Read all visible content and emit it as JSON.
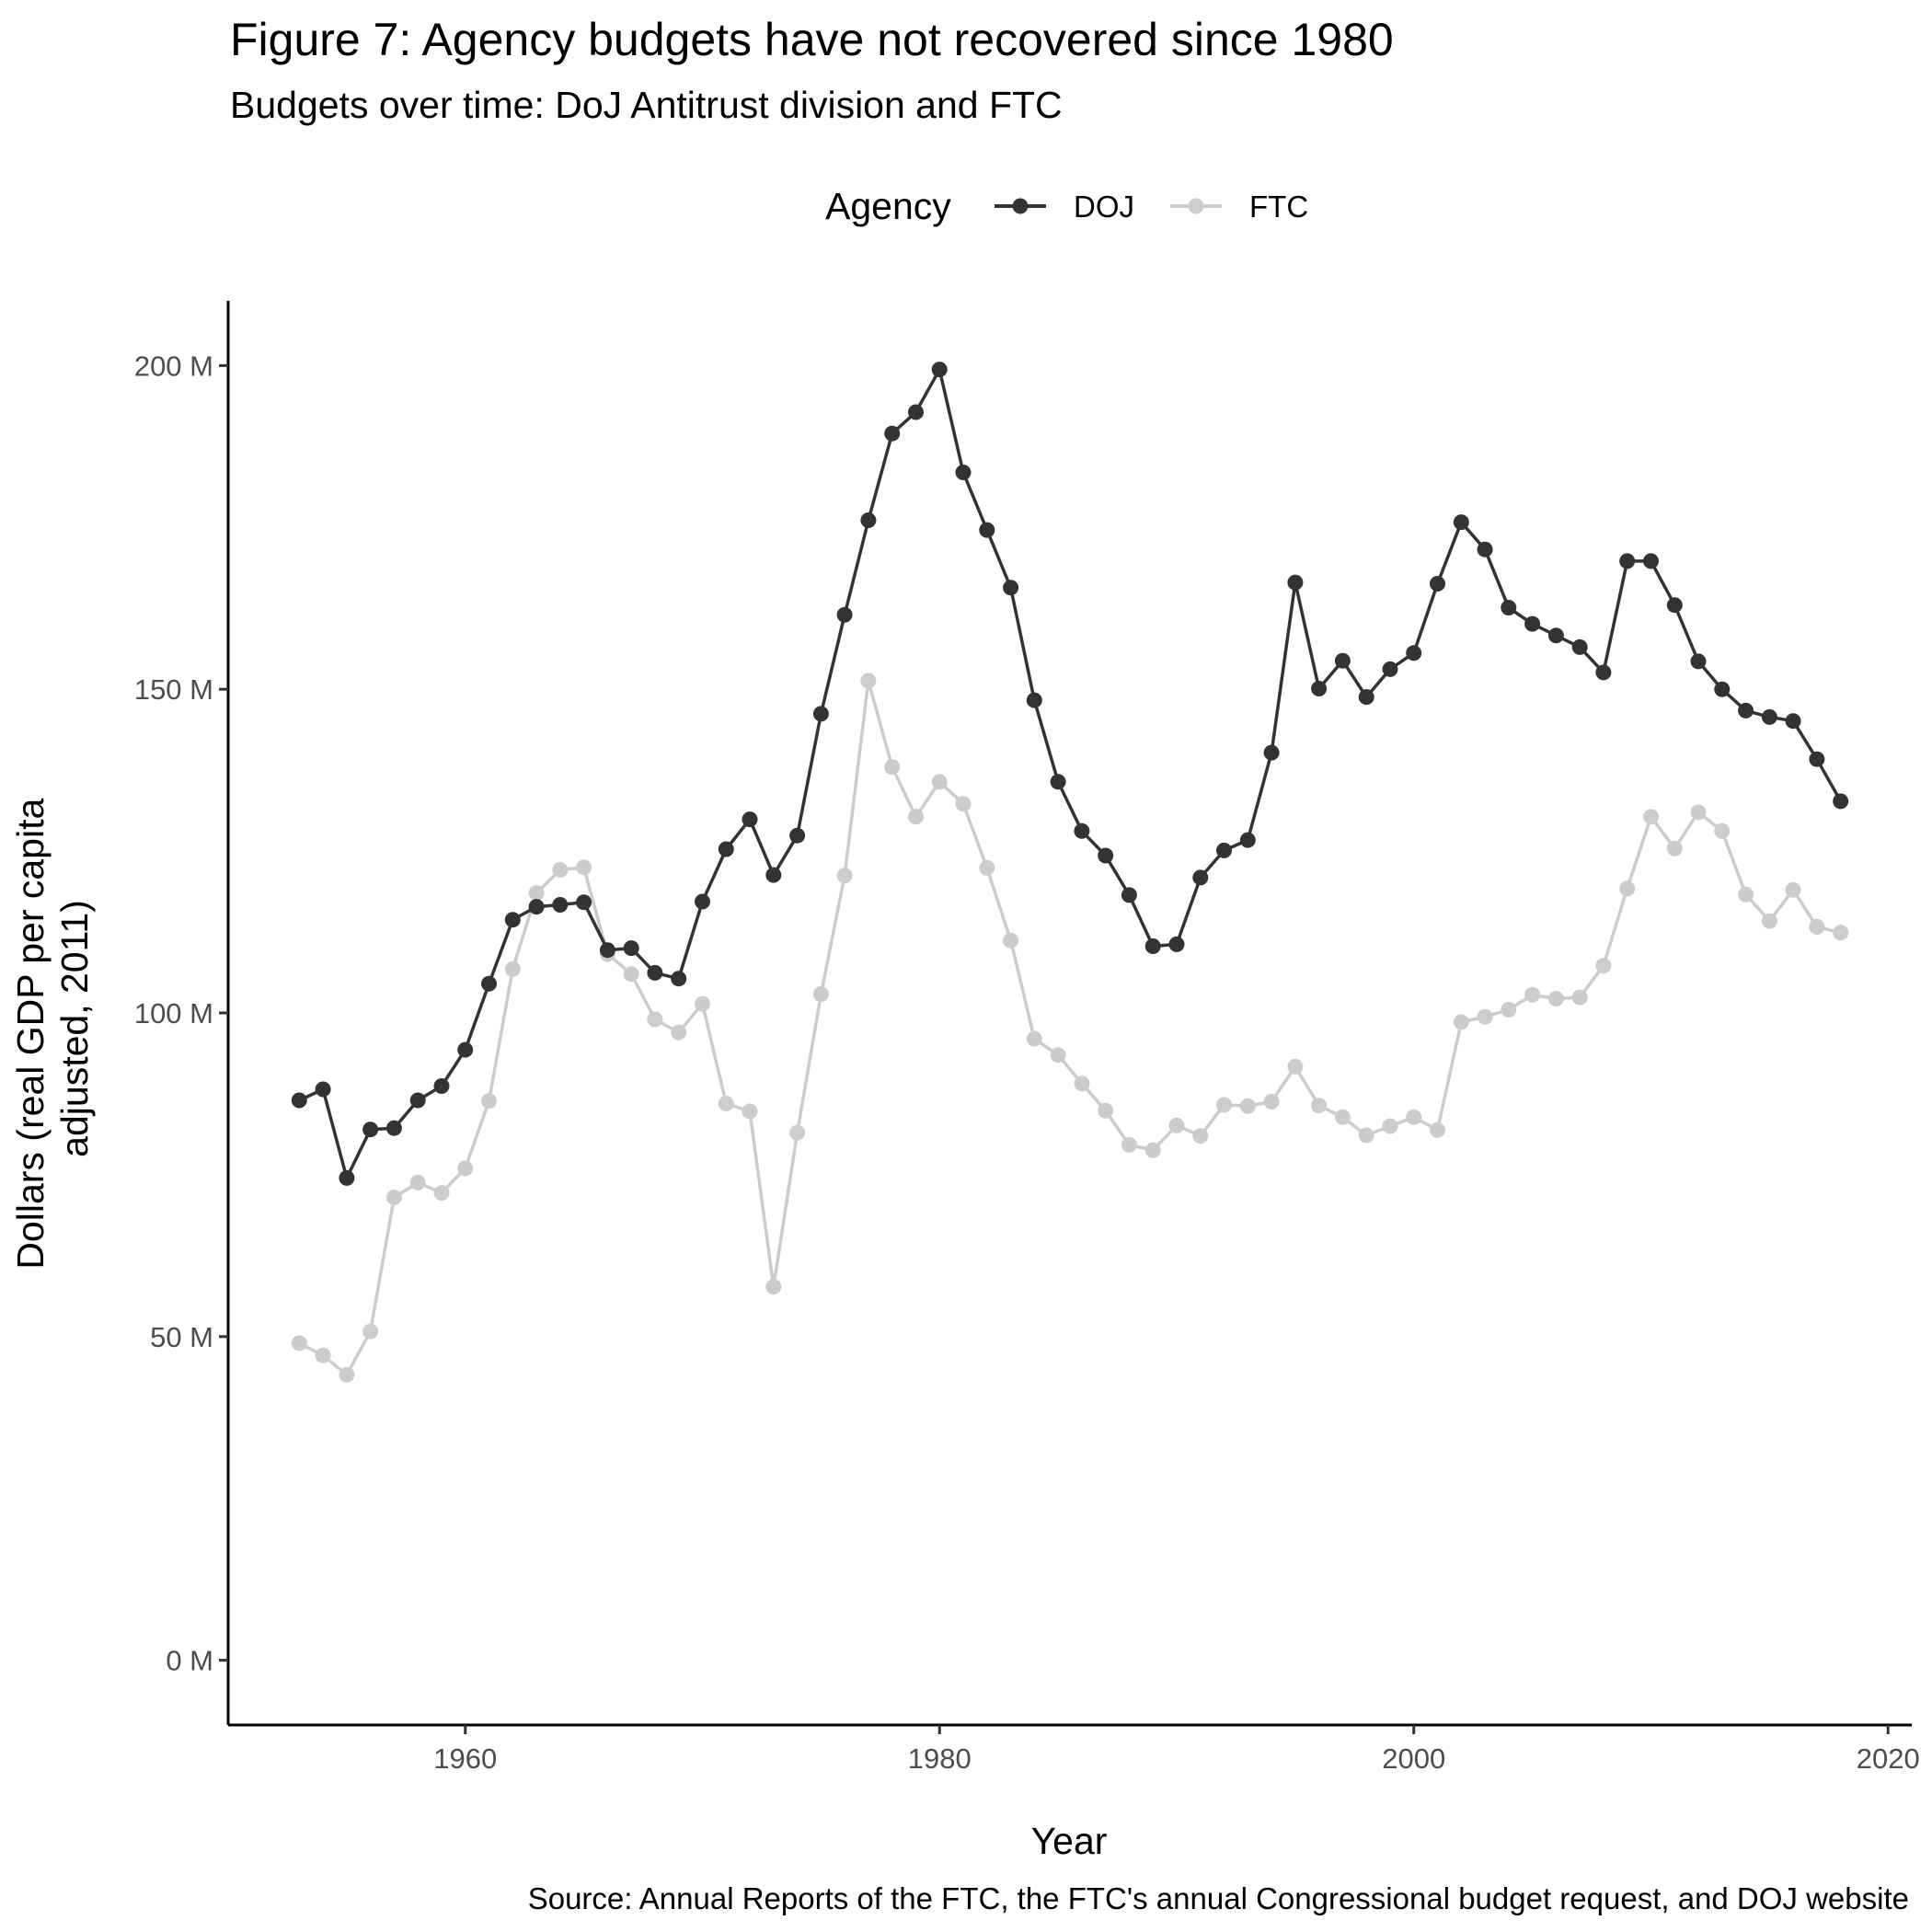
{
  "chart_data": {
    "type": "line",
    "title": "Figure 7: Agency budgets have not recovered since 1980",
    "subtitle": "Budgets over time: DoJ Antitrust division and FTC",
    "caption": "Source: Annual Reports of the FTC, the FTC's annual Congressional budget request, and DOJ website",
    "xlabel": "Year",
    "ylabel_lines": [
      "Dollars (real GDP per capita",
      "adjusted, 2011)"
    ],
    "xlim": [
      1950,
      2021
    ],
    "ylim": [
      -10,
      210
    ],
    "x_ticks": [
      1960,
      1980,
      2000,
      2020
    ],
    "y_ticks": [
      0,
      50,
      100,
      150,
      200
    ],
    "y_tick_labels": [
      "0 M",
      "50 M",
      "100 M",
      "150 M",
      "200 M"
    ],
    "grid": false,
    "legend": {
      "title": "Agency",
      "position": "top",
      "entries": [
        "DOJ",
        "FTC"
      ]
    },
    "x": [
      1953,
      1954,
      1955,
      1956,
      1957,
      1958,
      1959,
      1960,
      1961,
      1962,
      1963,
      1964,
      1965,
      1966,
      1967,
      1968,
      1969,
      1970,
      1971,
      1972,
      1973,
      1974,
      1975,
      1976,
      1977,
      1978,
      1979,
      1980,
      1981,
      1982,
      1983,
      1984,
      1985,
      1986,
      1987,
      1988,
      1989,
      1990,
      1991,
      1992,
      1993,
      1994,
      1995,
      1996,
      1997,
      1998,
      1999,
      2000,
      2001,
      2002,
      2003,
      2004,
      2005,
      2006,
      2007,
      2008,
      2009,
      2010,
      2011,
      2012,
      2013,
      2014,
      2015,
      2016,
      2017,
      2018
    ],
    "series": [
      {
        "name": "DOJ",
        "color": "#333333",
        "values": [
          86.5,
          88.2,
          74.5,
          82,
          82.2,
          86.5,
          88.7,
          94.3,
          104.5,
          114.4,
          116.4,
          116.7,
          117.1,
          109.7,
          110,
          106.2,
          105.3,
          117.2,
          125.3,
          129.9,
          121.3,
          127.4,
          146.2,
          161.5,
          176.1,
          189.5,
          192.8,
          199.4,
          183.5,
          174.6,
          165.7,
          148.3,
          135.7,
          128.1,
          124.3,
          118.2,
          110.3,
          110.6,
          120.9,
          125.1,
          126.7,
          140.2,
          166.5,
          150.1,
          154.4,
          148.8,
          153.1,
          155.6,
          166.3,
          175.8,
          171.6,
          162.6,
          160.1,
          158.3,
          156.5,
          152.6,
          169.8,
          169.8,
          163,
          154.3,
          150,
          146.7,
          145.7,
          145.1,
          139.2,
          132.7
        ]
      },
      {
        "name": "FTC",
        "color": "#cccccc",
        "values": [
          49,
          47.1,
          44.1,
          50.8,
          71.5,
          73.8,
          72.2,
          76,
          86.4,
          106.8,
          118.5,
          122.1,
          122.5,
          109.1,
          106,
          99,
          97,
          101.4,
          86,
          84.8,
          57.7,
          81.5,
          102.9,
          121.2,
          151.3,
          138,
          130.3,
          135.7,
          132.3,
          122.4,
          111.2,
          96,
          93.5,
          89.1,
          84.9,
          79.6,
          78.8,
          82.6,
          81,
          85.8,
          85.6,
          86.3,
          91.7,
          85.7,
          83.9,
          81.1,
          82.5,
          83.9,
          81.9,
          98.6,
          99.4,
          100.5,
          102.8,
          102.2,
          102.4,
          107.3,
          119.2,
          130.3,
          125.4,
          131,
          128.1,
          118.3,
          114.2,
          119,
          113.3,
          112.4
        ]
      }
    ]
  }
}
